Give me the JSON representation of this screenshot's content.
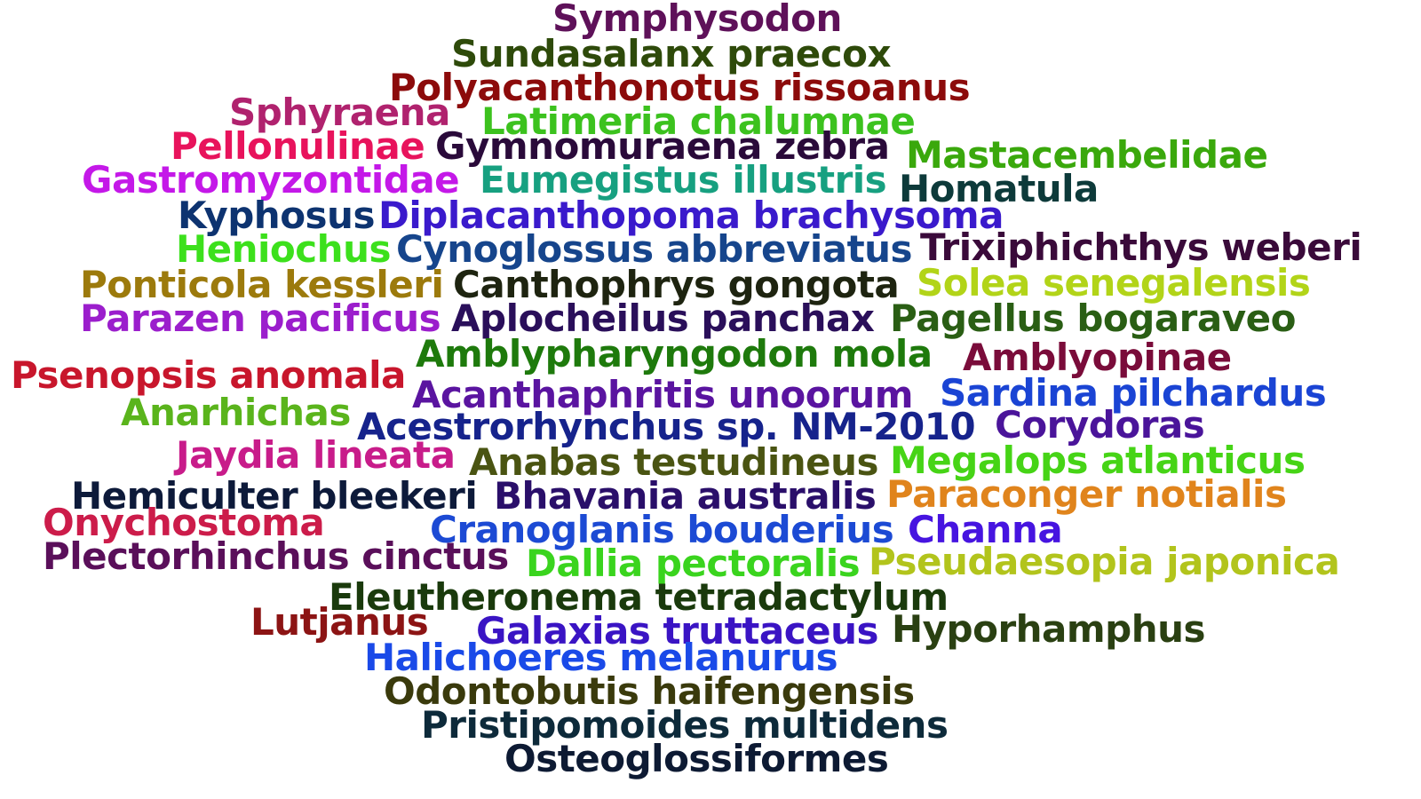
{
  "words": [
    {
      "text": "Symphysodon",
      "color": "#5e1159"
    },
    {
      "text": "Sundasalanx praecox",
      "color": "#2e4a0a"
    },
    {
      "text": "Polyacanthonotus rissoanus",
      "color": "#8c0b0b"
    },
    {
      "text": "Sphyraena",
      "color": "#b0226e"
    },
    {
      "text": "Latimeria chalumnae",
      "color": "#3cc21e"
    },
    {
      "text": "Pellonulinae",
      "color": "#e8135c"
    },
    {
      "text": "Gymnomuraena zebra",
      "color": "#2a0a3a"
    },
    {
      "text": "Mastacembelidae",
      "color": "#3aa80c"
    },
    {
      "text": "Gastromyzontidae",
      "color": "#c418e8"
    },
    {
      "text": "Eumegistus illustris",
      "color": "#17a080"
    },
    {
      "text": "Homatula",
      "color": "#0d3a3a"
    },
    {
      "text": "Kyphosus",
      "color": "#0d3370"
    },
    {
      "text": "Diplacanthopoma brachysoma",
      "color": "#3a1acc"
    },
    {
      "text": "Heniochus",
      "color": "#3ce01c"
    },
    {
      "text": "Cynoglossus abbreviatus",
      "color": "#16458c"
    },
    {
      "text": "Trixiphichthys weberi",
      "color": "#3a0a3a"
    },
    {
      "text": "Ponticola kessleri",
      "color": "#9c7a0c"
    },
    {
      "text": "Canthophrys gongota",
      "color": "#1e2410"
    },
    {
      "text": "Solea senegalensis",
      "color": "#b2d418"
    },
    {
      "text": "Parazen pacificus",
      "color": "#9b1ecc"
    },
    {
      "text": "Aplocheilus panchax",
      "color": "#2a0f5a"
    },
    {
      "text": "Pagellus bogaraveo",
      "color": "#2a5e14"
    },
    {
      "text": "Amblypharyngodon mola",
      "color": "#1e7a0c"
    },
    {
      "text": "Amblyopinae",
      "color": "#7a0c3a"
    },
    {
      "text": "Psenopsis anomala",
      "color": "#c8162c"
    },
    {
      "text": "Acanthaphritis unoorum",
      "color": "#5a14a0"
    },
    {
      "text": "Sardina pilchardus",
      "color": "#1a44d4"
    },
    {
      "text": "Anarhichas",
      "color": "#5ab41c"
    },
    {
      "text": "Acestrorhynchus sp. NM-2010",
      "color": "#16238c"
    },
    {
      "text": "Corydoras",
      "color": "#4a149a"
    },
    {
      "text": "Jaydia lineata",
      "color": "#c81c8a"
    },
    {
      "text": "Anabas testudineus",
      "color": "#4a5412"
    },
    {
      "text": "Megalops atlanticus",
      "color": "#46d416"
    },
    {
      "text": "Hemiculter bleekeri",
      "color": "#0d1a3a"
    },
    {
      "text": "Bhavania australis",
      "color": "#2a0f6a"
    },
    {
      "text": "Paraconger notialis",
      "color": "#e0841c"
    },
    {
      "text": "Onychostoma",
      "color": "#cc1c4a"
    },
    {
      "text": "Cranoglanis bouderius",
      "color": "#1c4ad4"
    },
    {
      "text": "Channa",
      "color": "#4614e0"
    },
    {
      "text": "Plectorhinchus cinctus",
      "color": "#5a0f5a"
    },
    {
      "text": "Dallia pectoralis",
      "color": "#3ad41e"
    },
    {
      "text": "Pseudaesopia japonica",
      "color": "#b2c41c"
    },
    {
      "text": "Eleutheronema tetradactylum",
      "color": "#1a3a0c"
    },
    {
      "text": "Lutjanus",
      "color": "#8c1414"
    },
    {
      "text": "Galaxias truttaceus",
      "color": "#3a14c4"
    },
    {
      "text": "Hyporhamphus",
      "color": "#2a4012"
    },
    {
      "text": "Halichoeres melanurus",
      "color": "#1a4ae8"
    },
    {
      "text": "Odontobutis haifengensis",
      "color": "#3a3a0c"
    },
    {
      "text": "Pristipomoides multidens",
      "color": "#0d2a3a"
    },
    {
      "text": "Osteoglossiformes",
      "color": "#0d1a33"
    }
  ]
}
